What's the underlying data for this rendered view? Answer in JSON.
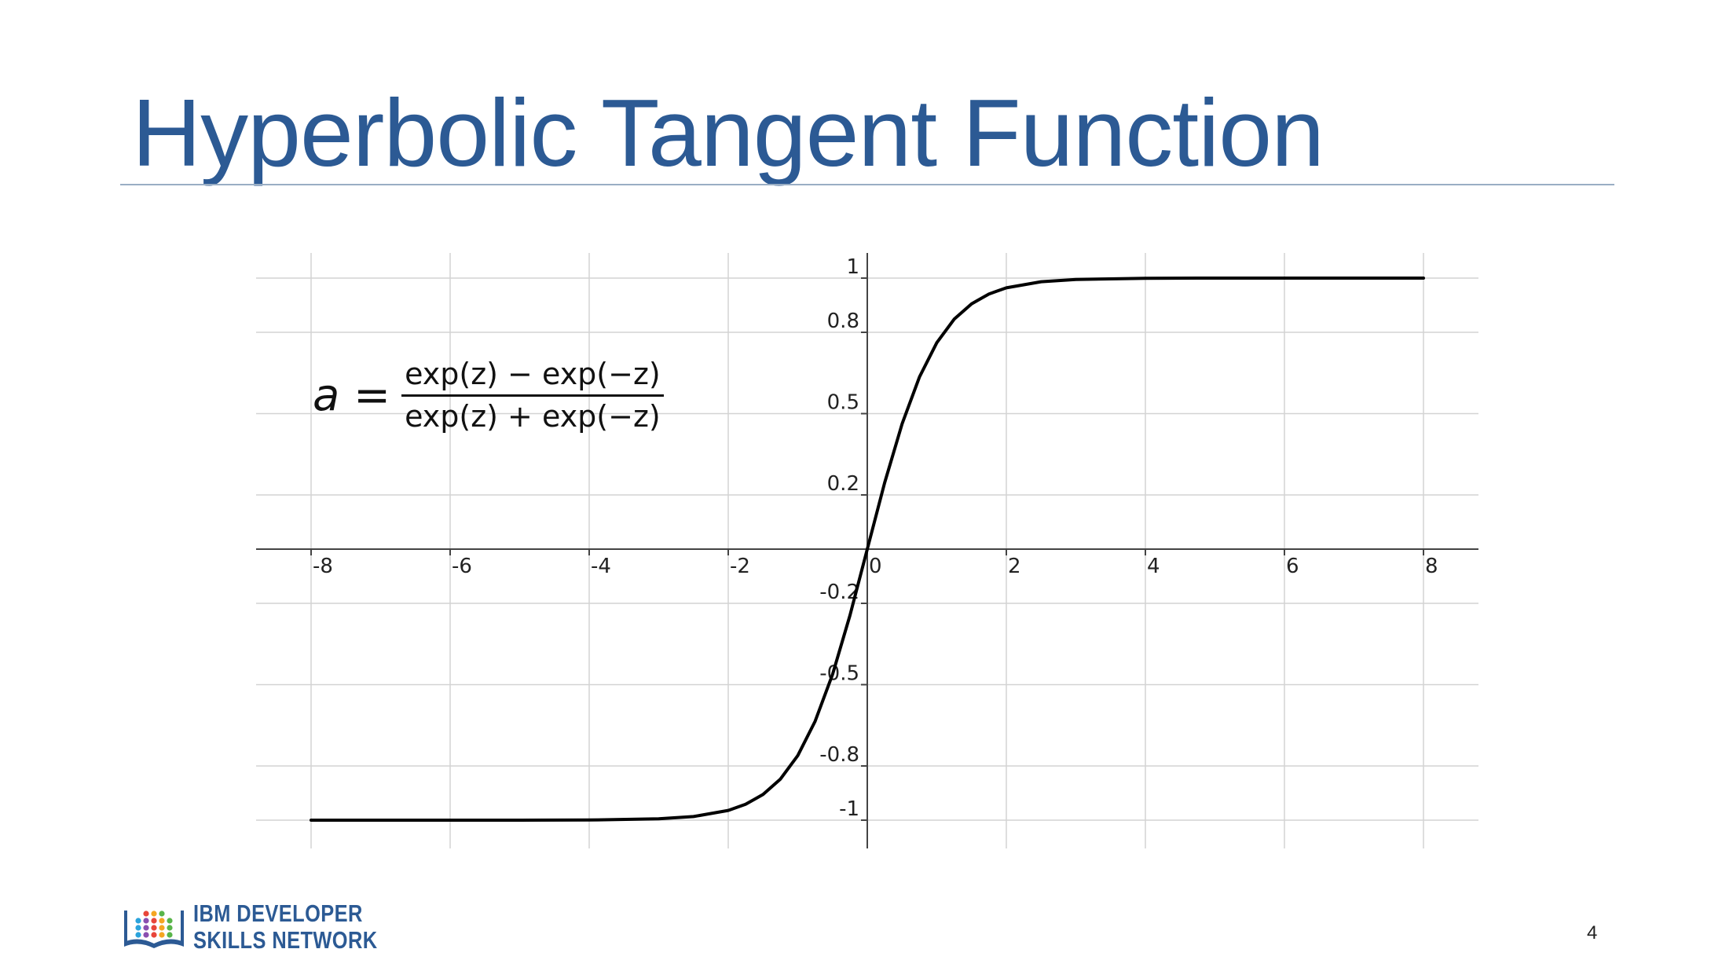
{
  "slide": {
    "title": "Hyperbolic Tangent Function",
    "page_number": "4"
  },
  "formula": {
    "lhs": "a",
    "equals": "=",
    "numerator": "exp(z) − exp(−z)",
    "denominator": "exp(z) + exp(−z)"
  },
  "logo": {
    "line1": "IBM DEVELOPER",
    "line2": "SKILLS NETWORK",
    "icon": "open-book-icon",
    "colors": [
      "#2c5a94",
      "#e8463a",
      "#f4a622",
      "#59b54a",
      "#2ba3dc",
      "#8a4fb0"
    ]
  },
  "colors": {
    "title": "#2c5a94",
    "curve": "#000000",
    "grid": "#d3d3d3",
    "axis": "#444444"
  },
  "chart_data": {
    "type": "line",
    "title": "",
    "xlabel": "",
    "ylabel": "",
    "function": "tanh(x)",
    "xlim": [
      -8.4,
      8.4
    ],
    "ylim": [
      -1.1,
      1.05
    ],
    "grid": true,
    "legend": "none",
    "x_ticks": [
      -8,
      -6,
      -4,
      -2,
      0,
      2,
      4,
      6,
      8
    ],
    "x_tick_labels": [
      "-8",
      "-6",
      "-4",
      "-2",
      "0",
      "2",
      "4",
      "6",
      "8"
    ],
    "y_ticks": [
      1,
      0.8,
      0.5,
      0.2,
      -0.2,
      -0.5,
      -0.8,
      -1
    ],
    "y_tick_labels": [
      "1",
      "0.8",
      "0.5",
      "0.2",
      "-0.2",
      "-0.5",
      "-0.8",
      "-1"
    ],
    "series": [
      {
        "x": [
          -8,
          -7,
          -6,
          -5,
          -4,
          -3,
          -2.5,
          -2,
          -1.75,
          -1.5,
          -1.25,
          -1,
          -0.75,
          -0.5,
          -0.25,
          0,
          0.25,
          0.5,
          0.75,
          1,
          1.25,
          1.5,
          1.75,
          2,
          2.5,
          3,
          4,
          5,
          6,
          7,
          8
        ],
        "y": [
          -1,
          -1,
          -1,
          -0.9999,
          -0.9993,
          -0.9951,
          -0.9866,
          -0.964,
          -0.9414,
          -0.9051,
          -0.8483,
          -0.7616,
          -0.6351,
          -0.4621,
          -0.2449,
          0,
          0.2449,
          0.4621,
          0.6351,
          0.7616,
          0.8483,
          0.9051,
          0.9414,
          0.964,
          0.9866,
          0.9951,
          0.9993,
          0.9999,
          1,
          1,
          1
        ]
      }
    ]
  }
}
